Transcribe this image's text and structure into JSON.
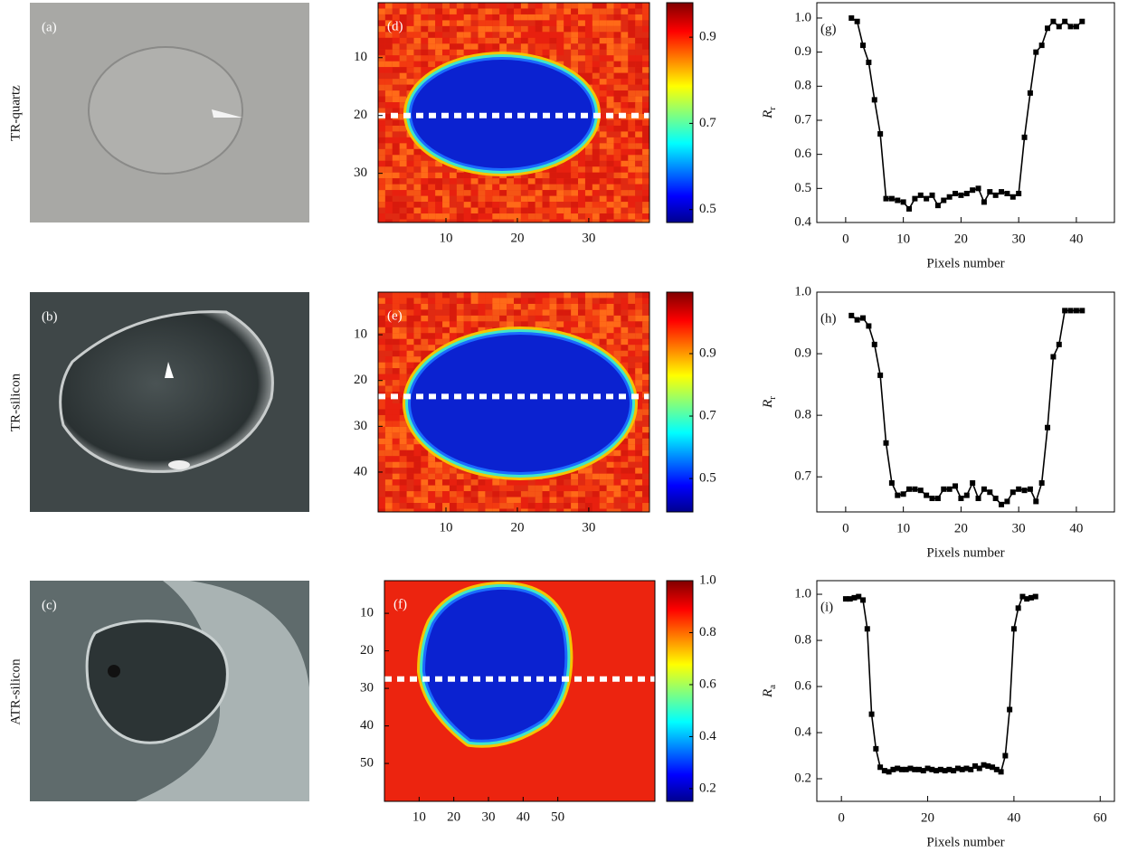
{
  "row_labels": [
    "TR-quartz",
    "TR-silicon",
    "ATR-silicon"
  ],
  "photos": [
    {
      "label": "(a)"
    },
    {
      "label": "(b)"
    },
    {
      "label": "(c)"
    }
  ],
  "chart_data": [
    {
      "type": "heatmap",
      "label": "(d)",
      "xlim": [
        0.5,
        38.5
      ],
      "ylim": [
        0.5,
        38.5
      ],
      "xticks": [
        10,
        20,
        30
      ],
      "yticks": [
        10,
        20,
        30
      ],
      "cut_row": 20,
      "colorbar": {
        "clim": [
          0.47,
          0.98
        ],
        "ticks": [
          0.5,
          0.7,
          0.9
        ]
      }
    },
    {
      "type": "heatmap",
      "label": "(e)",
      "xlim": [
        0.5,
        38.5
      ],
      "ylim": [
        0.7,
        48.7
      ],
      "xticks": [
        10,
        20,
        30
      ],
      "yticks": [
        10,
        20,
        30,
        40
      ],
      "cut_row": 23.5,
      "colorbar": {
        "clim": [
          0.393,
          1.097
        ],
        "ticks": [
          0.5,
          0.7,
          0.9
        ]
      }
    },
    {
      "type": "heatmap",
      "label": "(f)",
      "xlim": [
        0,
        78
      ],
      "ylim": [
        1.3,
        60.1
      ],
      "xticks": [
        10,
        20,
        30,
        40,
        50
      ],
      "yticks": [
        10,
        20,
        30,
        40,
        50
      ],
      "cut_row": 27.5,
      "colorbar": {
        "clim": [
          0.151,
          1.0
        ],
        "ticks": [
          0.2,
          0.4,
          0.6,
          0.8,
          {
            "value": 1.0,
            "label": "1.0"
          }
        ]
      }
    },
    {
      "type": "line",
      "label": "(g)",
      "xlabel": "Pixels number",
      "ylabel": "R",
      "ylabel_sub": "r",
      "color": "#000000",
      "xlim": [
        -5,
        46.6
      ],
      "ylim": [
        0.4,
        1.045
      ],
      "xticks": [
        0,
        10,
        20,
        30,
        40
      ],
      "yticks": [
        0.4,
        0.5,
        0.6,
        0.7,
        0.8,
        0.9,
        {
          "value": 1.0,
          "label": "1.0"
        }
      ],
      "x": [
        1,
        2,
        3,
        4,
        5,
        6,
        7,
        8,
        9,
        10,
        11,
        12,
        13,
        14,
        15,
        16,
        17,
        18,
        19,
        20,
        21,
        22,
        23,
        24,
        25,
        26,
        27,
        28,
        29,
        30,
        31,
        32,
        33,
        34,
        35,
        36,
        37,
        38,
        39,
        40,
        41
      ],
      "values": [
        1.0,
        0.99,
        0.92,
        0.87,
        0.76,
        0.66,
        0.47,
        0.47,
        0.465,
        0.46,
        0.44,
        0.47,
        0.48,
        0.47,
        0.48,
        0.45,
        0.465,
        0.475,
        0.485,
        0.48,
        0.485,
        0.495,
        0.5,
        0.46,
        0.49,
        0.48,
        0.49,
        0.485,
        0.475,
        0.485,
        0.65,
        0.78,
        0.9,
        0.92,
        0.97,
        0.99,
        0.975,
        0.99,
        0.975,
        0.975,
        0.99
      ]
    },
    {
      "type": "line",
      "label": "(h)",
      "xlabel": "Pixels number",
      "ylabel": "R",
      "ylabel_sub": "r",
      "color": "#000000",
      "xlim": [
        -5,
        46.6
      ],
      "ylim": [
        0.643,
        1.0
      ],
      "xticks": [
        0,
        10,
        20,
        30,
        40
      ],
      "yticks": [
        0.7,
        0.8,
        0.9,
        {
          "value": 1.0,
          "label": "1.0"
        }
      ],
      "x": [
        1,
        2,
        3,
        4,
        5,
        6,
        7,
        8,
        9,
        10,
        11,
        12,
        13,
        14,
        15,
        16,
        17,
        18,
        19,
        20,
        21,
        22,
        23,
        24,
        25,
        26,
        27,
        28,
        29,
        30,
        31,
        32,
        33,
        34,
        35,
        36,
        37,
        38,
        39,
        40,
        41
      ],
      "values": [
        0.962,
        0.955,
        0.958,
        0.945,
        0.915,
        0.865,
        0.755,
        0.69,
        0.67,
        0.672,
        0.68,
        0.68,
        0.678,
        0.67,
        0.665,
        0.665,
        0.68,
        0.68,
        0.685,
        0.665,
        0.67,
        0.69,
        0.665,
        0.68,
        0.675,
        0.665,
        0.655,
        0.66,
        0.675,
        0.68,
        0.678,
        0.68,
        0.66,
        0.69,
        0.78,
        0.895,
        0.915,
        0.97,
        0.97,
        0.97,
        0.97
      ]
    },
    {
      "type": "line",
      "label": "(i)",
      "xlabel": "Pixels number",
      "ylabel": "R",
      "ylabel_sub": "a",
      "color": "#000000",
      "xlim": [
        -5.7,
        63.3
      ],
      "ylim": [
        0.102,
        1.059
      ],
      "xticks": [
        0,
        20,
        40,
        60
      ],
      "yticks": [
        0.2,
        0.4,
        0.6,
        0.8,
        {
          "value": 1.0,
          "label": "1.0"
        }
      ],
      "x": [
        1,
        2,
        3,
        4,
        5,
        6,
        7,
        8,
        9,
        10,
        11,
        12,
        13,
        14,
        15,
        16,
        17,
        18,
        19,
        20,
        21,
        22,
        23,
        24,
        25,
        26,
        27,
        28,
        29,
        30,
        31,
        32,
        33,
        34,
        35,
        36,
        37,
        38,
        39,
        40,
        41,
        42,
        43,
        44,
        45
      ],
      "values": [
        0.98,
        0.98,
        0.985,
        0.99,
        0.975,
        0.85,
        0.48,
        0.33,
        0.25,
        0.235,
        0.23,
        0.24,
        0.245,
        0.24,
        0.24,
        0.245,
        0.24,
        0.24,
        0.235,
        0.245,
        0.24,
        0.235,
        0.24,
        0.235,
        0.24,
        0.235,
        0.245,
        0.24,
        0.245,
        0.24,
        0.255,
        0.245,
        0.26,
        0.255,
        0.25,
        0.24,
        0.23,
        0.3,
        0.5,
        0.85,
        0.94,
        0.99,
        0.98,
        0.985,
        0.99
      ]
    }
  ]
}
